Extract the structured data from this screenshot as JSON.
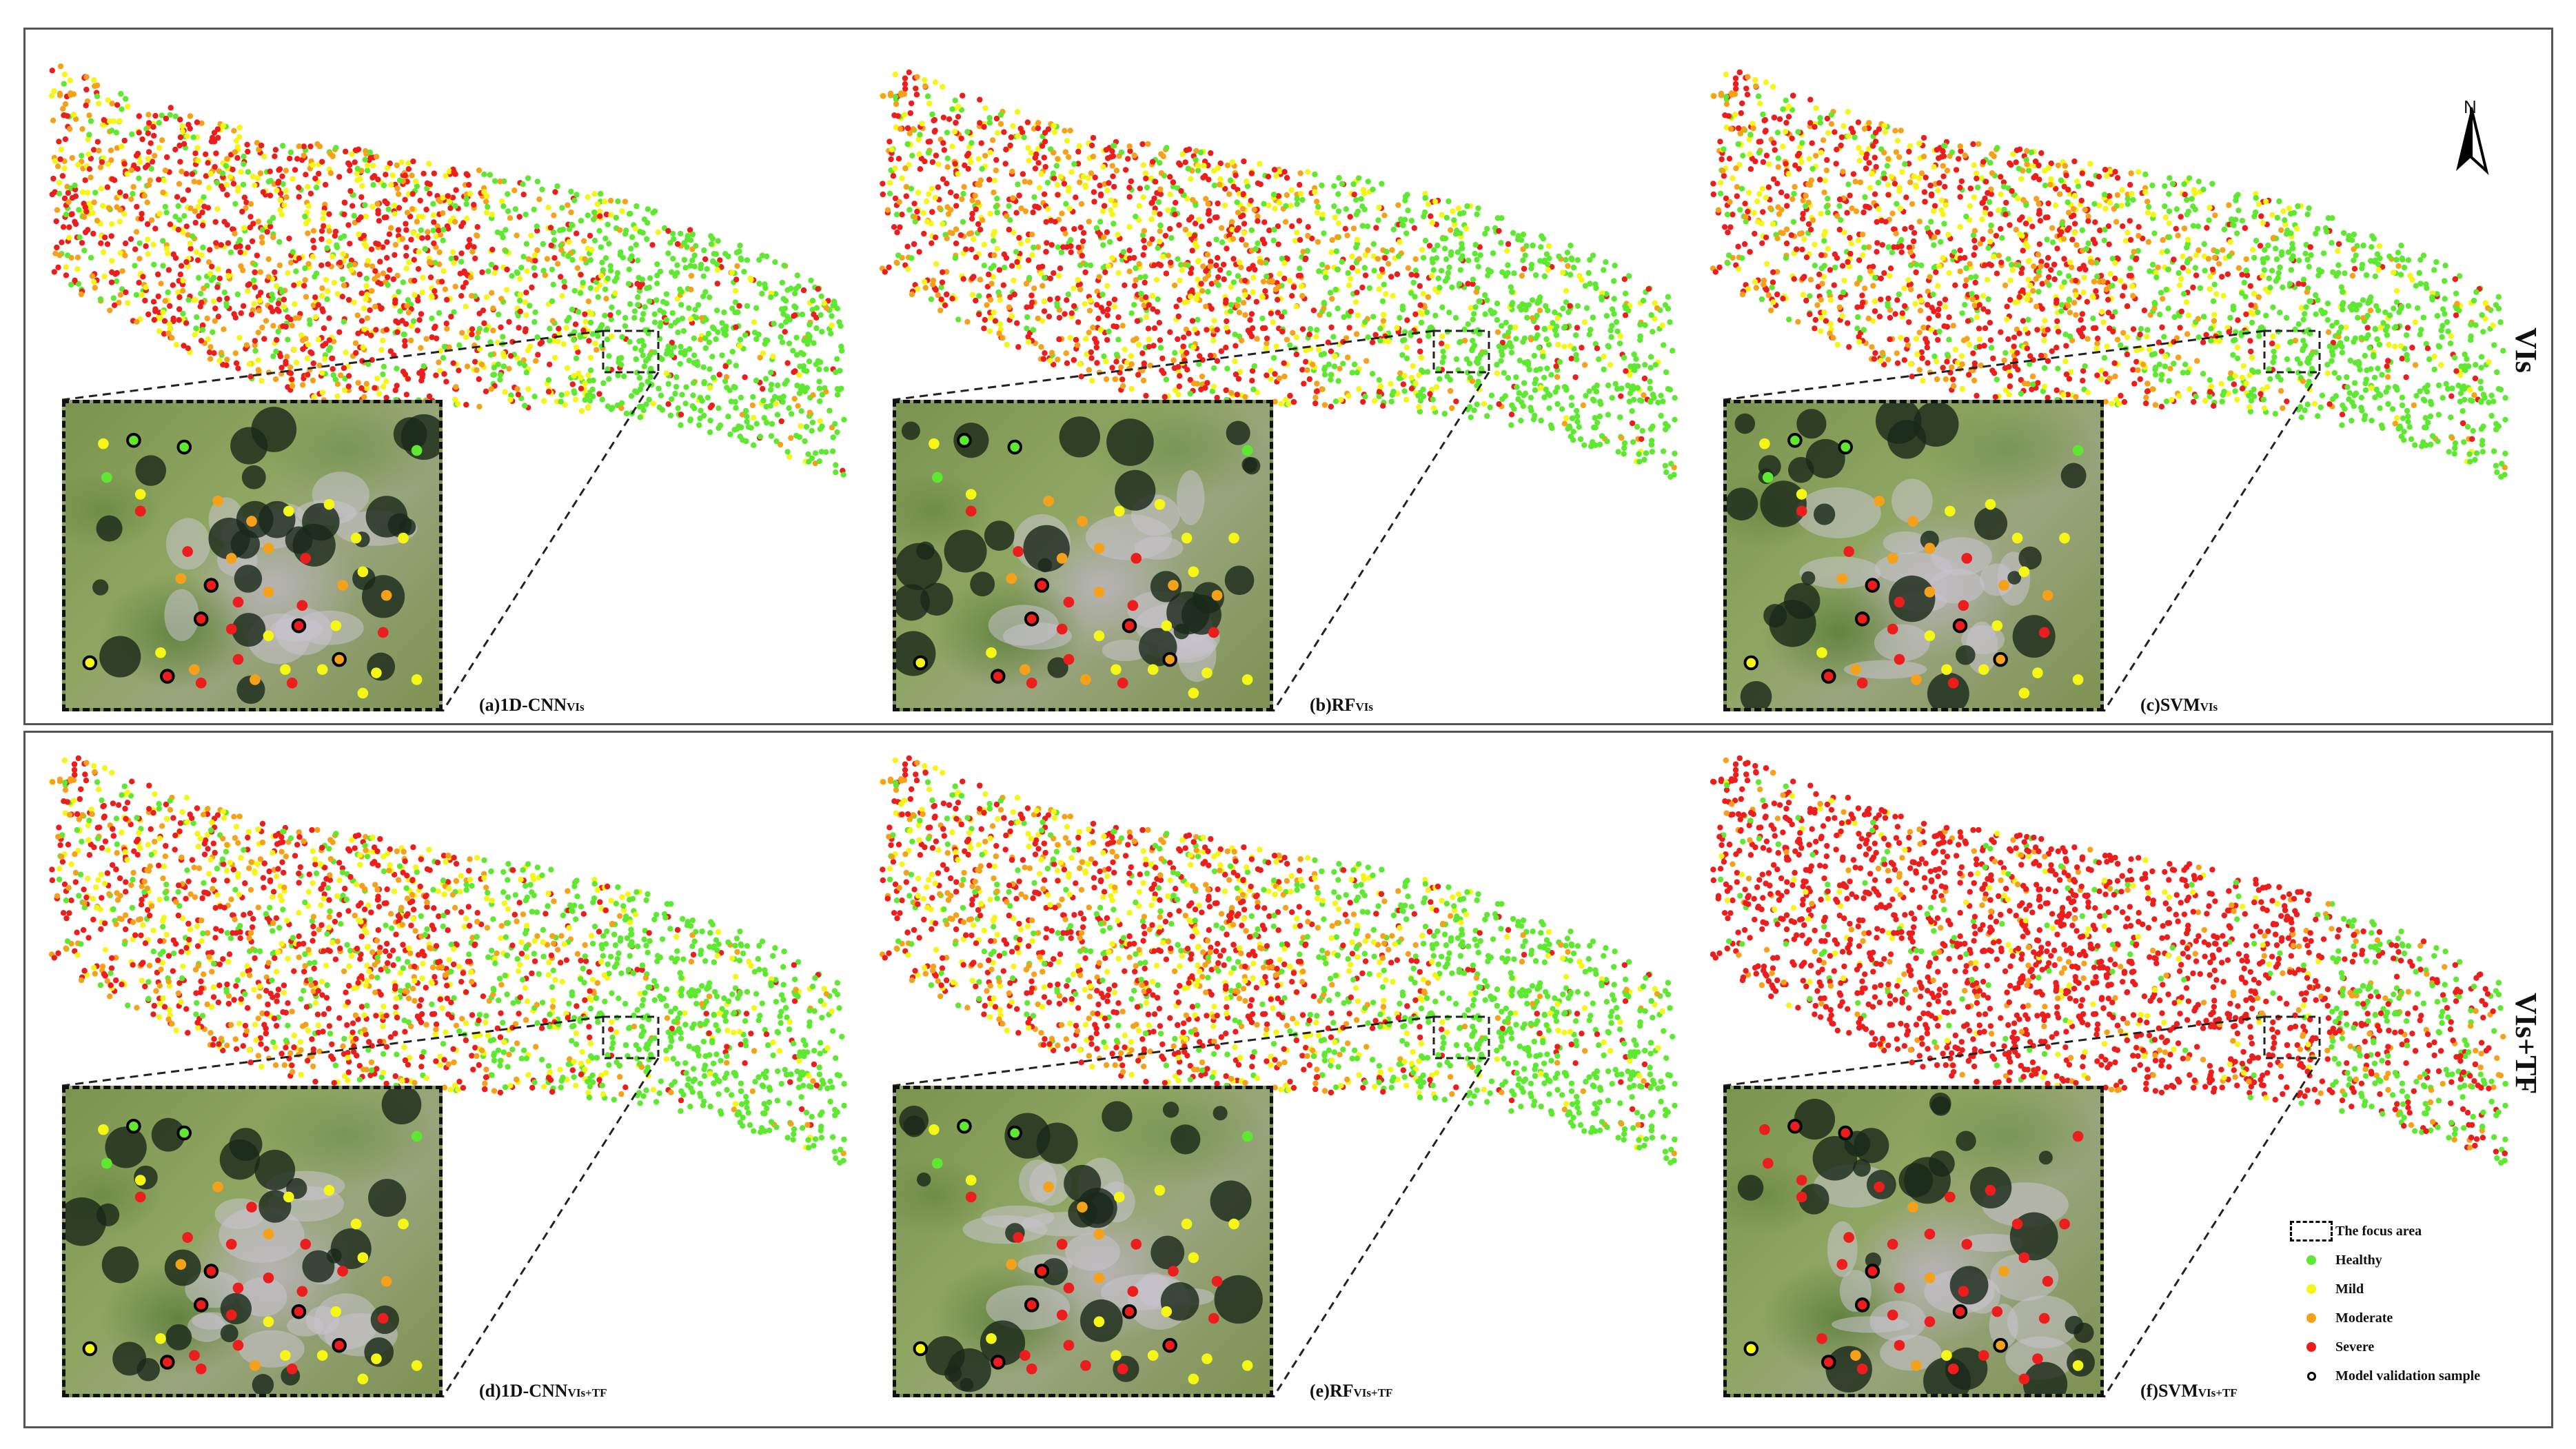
{
  "colors": {
    "healthy": "#5ee832",
    "mild": "#f5f516",
    "moderate": "#f5a11a",
    "severe": "#ec1d1d",
    "validation_ring": "#000000"
  },
  "north_label": "N",
  "rows": [
    {
      "label": "VIs"
    },
    {
      "label": "VIs+TF"
    }
  ],
  "panels": [
    {
      "prefix": "(a)1D-CNN",
      "suffix": "VIs"
    },
    {
      "prefix": "(b)RF",
      "suffix": "VIs"
    },
    {
      "prefix": "(c)SVM",
      "suffix": "VIs"
    },
    {
      "prefix": "(d)1D-CNN",
      "suffix": "VIs+TF"
    },
    {
      "prefix": "(e)RF",
      "suffix": "VIs+TF"
    },
    {
      "prefix": "(f)SVM",
      "suffix": "VIs+TF"
    }
  ],
  "legend": {
    "focus_area": "The focus area",
    "healthy": "Healthy",
    "mild": "Mild",
    "moderate": "Moderate",
    "severe": "Severe",
    "validation": "Model validation sample"
  }
}
